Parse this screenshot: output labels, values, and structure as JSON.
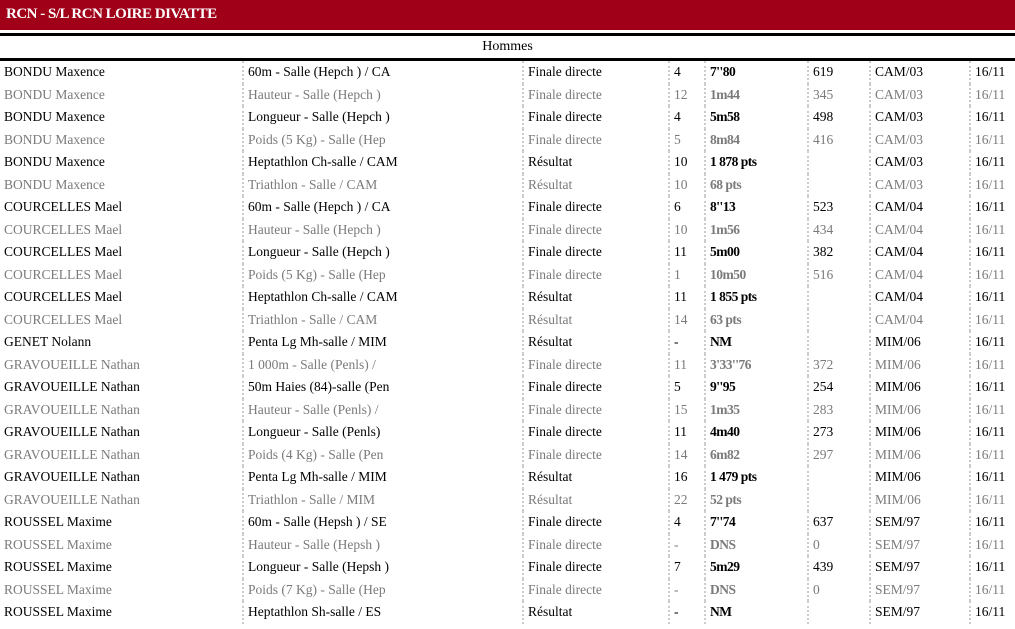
{
  "club_title": "RCN - S/L RCN LOIRE DIVATTE",
  "section_title": "Hommes",
  "colors": {
    "header_bg": "#a00018",
    "alt_text": "#7a7a7a"
  },
  "rows": [
    [
      "BONDU Maxence",
      "60m - Salle (Hepch ) / CA",
      "Finale directe",
      "4",
      "7''80",
      "619",
      "CAM/03",
      "16/11"
    ],
    [
      "BONDU Maxence",
      "Hauteur - Salle (Hepch )",
      "Finale directe",
      "12",
      "1m44",
      "345",
      "CAM/03",
      "16/11"
    ],
    [
      "BONDU Maxence",
      "Longueur - Salle (Hepch )",
      "Finale directe",
      "4",
      "5m58",
      "498",
      "CAM/03",
      "16/11"
    ],
    [
      "BONDU Maxence",
      "Poids (5 Kg) - Salle (Hep",
      "Finale directe",
      "5",
      "8m84",
      "416",
      "CAM/03",
      "16/11"
    ],
    [
      "BONDU Maxence",
      "Heptathlon Ch-salle / CAM",
      "Résultat",
      "10",
      "1 878 pts",
      "",
      "CAM/03",
      "16/11"
    ],
    [
      "BONDU Maxence",
      "Triathlon - Salle / CAM",
      "Résultat",
      "10",
      "68 pts",
      "",
      "CAM/03",
      "16/11"
    ],
    [
      "COURCELLES Mael",
      "60m - Salle (Hepch ) / CA",
      "Finale directe",
      "6",
      "8''13",
      "523",
      "CAM/04",
      "16/11"
    ],
    [
      "COURCELLES Mael",
      "Hauteur - Salle (Hepch )",
      "Finale directe",
      "10",
      "1m56",
      "434",
      "CAM/04",
      "16/11"
    ],
    [
      "COURCELLES Mael",
      "Longueur - Salle (Hepch )",
      "Finale directe",
      "11",
      "5m00",
      "382",
      "CAM/04",
      "16/11"
    ],
    [
      "COURCELLES Mael",
      "Poids (5 Kg) - Salle (Hep",
      "Finale directe",
      "1",
      "10m50",
      "516",
      "CAM/04",
      "16/11"
    ],
    [
      "COURCELLES Mael",
      "Heptathlon Ch-salle / CAM",
      "Résultat",
      "11",
      "1 855 pts",
      "",
      "CAM/04",
      "16/11"
    ],
    [
      "COURCELLES Mael",
      "Triathlon - Salle / CAM",
      "Résultat",
      "14",
      "63 pts",
      "",
      "CAM/04",
      "16/11"
    ],
    [
      "GENET Nolann",
      "Penta Lg Mh-salle / MIM",
      "Résultat",
      "-",
      "NM",
      "",
      "MIM/06",
      "16/11"
    ],
    [
      "GRAVOUEILLE Nathan",
      "1 000m - Salle (Penls) /",
      "Finale directe",
      "11",
      "3'33''76",
      "372",
      "MIM/06",
      "16/11"
    ],
    [
      "GRAVOUEILLE Nathan",
      "50m Haies (84)-salle (Pen",
      "Finale directe",
      "5",
      "9''95",
      "254",
      "MIM/06",
      "16/11"
    ],
    [
      "GRAVOUEILLE Nathan",
      "Hauteur - Salle (Penls) /",
      "Finale directe",
      "15",
      "1m35",
      "283",
      "MIM/06",
      "16/11"
    ],
    [
      "GRAVOUEILLE Nathan",
      "Longueur - Salle (Penls)",
      "Finale directe",
      "11",
      "4m40",
      "273",
      "MIM/06",
      "16/11"
    ],
    [
      "GRAVOUEILLE Nathan",
      "Poids (4 Kg) - Salle (Pen",
      "Finale directe",
      "14",
      "6m82",
      "297",
      "MIM/06",
      "16/11"
    ],
    [
      "GRAVOUEILLE Nathan",
      "Penta Lg Mh-salle / MIM",
      "Résultat",
      "16",
      "1 479 pts",
      "",
      "MIM/06",
      "16/11"
    ],
    [
      "GRAVOUEILLE Nathan",
      "Triathlon - Salle / MIM",
      "Résultat",
      "22",
      "52 pts",
      "",
      "MIM/06",
      "16/11"
    ],
    [
      "ROUSSEL Maxime",
      "60m - Salle (Hepsh ) / SE",
      "Finale directe",
      "4",
      "7''74",
      "637",
      "SEM/97",
      "16/11"
    ],
    [
      "ROUSSEL Maxime",
      "Hauteur - Salle (Hepsh )",
      "Finale directe",
      "-",
      "DNS",
      "0",
      "SEM/97",
      "16/11"
    ],
    [
      "ROUSSEL Maxime",
      "Longueur - Salle (Hepsh )",
      "Finale directe",
      "7",
      "5m29",
      "439",
      "SEM/97",
      "16/11"
    ],
    [
      "ROUSSEL Maxime",
      "Poids (7 Kg) - Salle (Hep",
      "Finale directe",
      "-",
      "DNS",
      "0",
      "SEM/97",
      "16/11"
    ],
    [
      "ROUSSEL Maxime",
      "Heptathlon Sh-salle / ES",
      "Résultat",
      "-",
      "NM",
      "",
      "SEM/97",
      "16/11"
    ]
  ]
}
